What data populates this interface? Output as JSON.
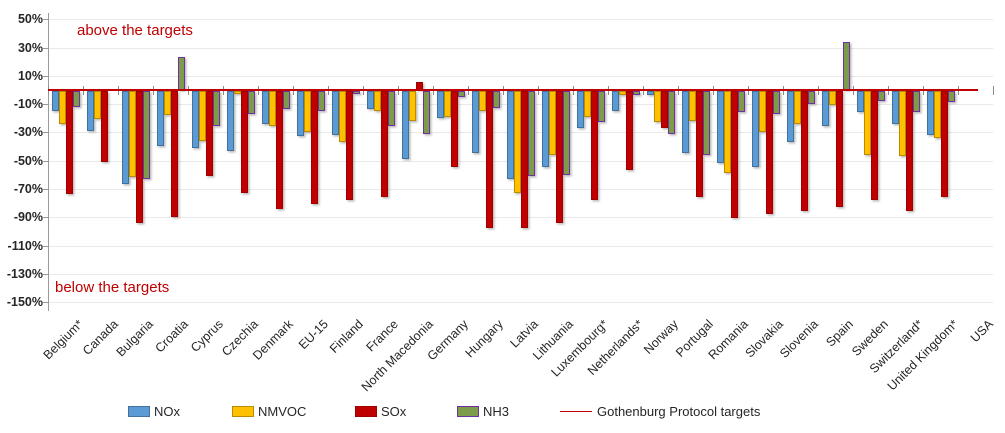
{
  "chart_data": {
    "type": "bar",
    "title": "",
    "unit": "%",
    "ylim": [
      -150,
      50
    ],
    "grid": true,
    "legend_position": "bottom",
    "y_ticks": [
      50,
      30,
      10,
      -10,
      -30,
      -50,
      -70,
      -90,
      -110,
      -130,
      -150
    ],
    "y_tick_labels": [
      "50%",
      "30%",
      "10%",
      "-10%",
      "-30%",
      "-50%",
      "-70%",
      "-90%",
      "-110%",
      "-130%",
      "-150%"
    ],
    "annotations": {
      "above": "above the targets",
      "below": "below the targets"
    },
    "categories": [
      "Belgium*",
      "Canada",
      "Bulgaria",
      "Croatia",
      "Cyprus",
      "Czechia",
      "Denmark",
      "EU-15",
      "Finland",
      "France",
      "North Macedonia",
      "Germany",
      "Hungary",
      "Latvia",
      "Lithuania",
      "Luxembourg*",
      "Netherlands*",
      "Norway",
      "Portugal",
      "Romania",
      "Slovakia",
      "Slovenia",
      "Spain",
      "Sweden",
      "Switzerland*",
      "United Kingdom*",
      "USA"
    ],
    "series": [
      {
        "name": "NOx",
        "color": "#5b9bd5",
        "border_color": "#41719c",
        "values": [
          -14,
          -28,
          -66,
          -39,
          -40,
          -42,
          -23,
          -32,
          -31,
          -13,
          -48,
          -19,
          -44,
          -62,
          -54,
          -26,
          -14,
          -3,
          -44,
          -51,
          -54,
          -36,
          -25,
          -15,
          -23,
          -31,
          null
        ]
      },
      {
        "name": "NMVOC",
        "color": "#ffc000",
        "border_color": "#bc8c00",
        "values": [
          -23,
          -20,
          -61,
          -17,
          -35,
          -2,
          -25,
          -29,
          -36,
          -14,
          -21,
          -18,
          -14,
          -72,
          -45,
          -18,
          -3,
          -22,
          -21,
          -58,
          -29,
          -23,
          -10,
          -45,
          -46,
          -33,
          null
        ]
      },
      {
        "name": "SOx",
        "color": "#c00000",
        "border_color": "#a00000",
        "values": [
          -73,
          -50,
          -93,
          -89,
          -60,
          -72,
          -83,
          -80,
          -77,
          -75,
          6,
          -54,
          -97,
          -97,
          -93,
          -77,
          -56,
          -26,
          -75,
          -90,
          -87,
          -85,
          -82,
          -77,
          -85,
          -75,
          null
        ]
      },
      {
        "name": "NH3",
        "color": "#7d9c49",
        "border_color": "#7030a0",
        "values": [
          -11,
          null,
          -62,
          23,
          -25,
          -16,
          -13,
          -14,
          -2,
          -25,
          -30,
          -4,
          -12,
          -60,
          -59,
          -22,
          -3,
          -30,
          -45,
          -15,
          -16,
          -9,
          34,
          -7,
          -15,
          -8,
          null
        ]
      }
    ],
    "target_line": {
      "label": "Gothenburg Protocol targets",
      "value": 0,
      "color": "#c00000"
    }
  },
  "colors": {
    "annotation_text": "#c00000",
    "axis": "#9a9a9a",
    "gridline": "#e9e9e9",
    "tick_label": "#262626"
  }
}
